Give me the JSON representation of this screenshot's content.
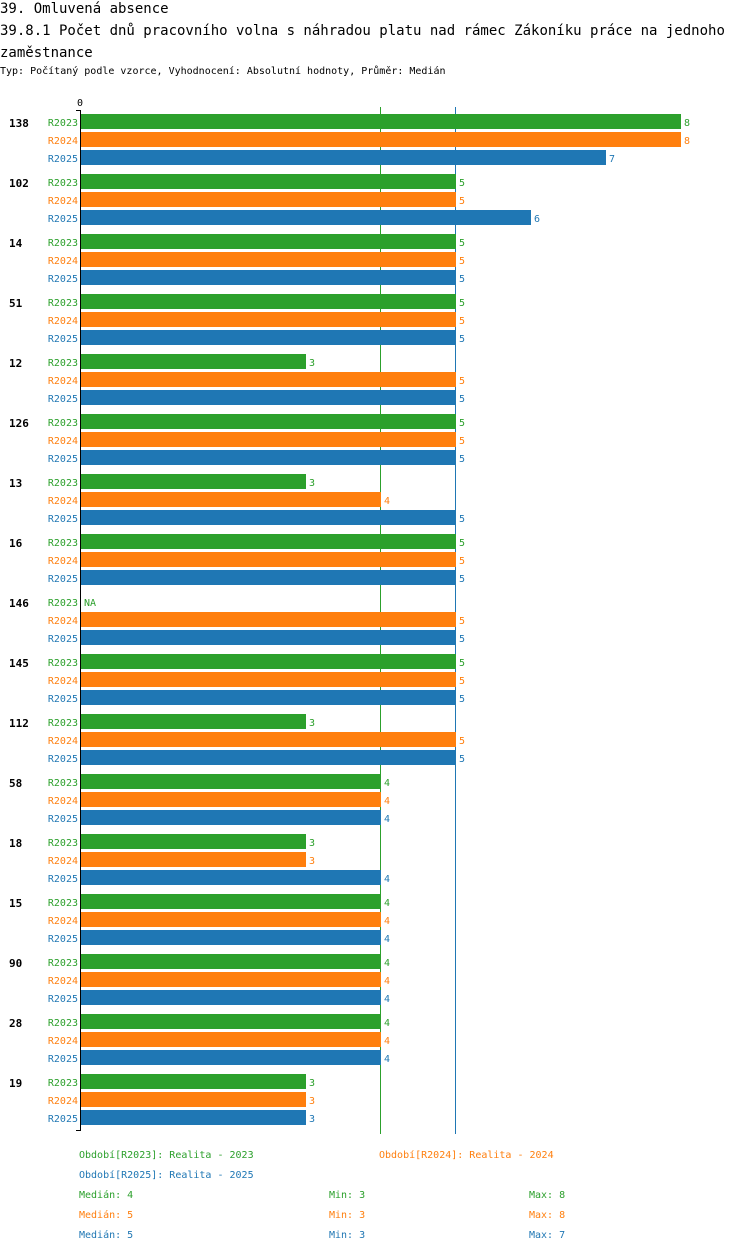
{
  "header": {
    "title": "39. Omluvená absence",
    "subtitle": "39.8.1 Počet dnů pracovního volna s náhradou platu nad rámec Zákoníku práce na jednoho zaměstnance",
    "info": "Typ: Počítaný podle vzorce, Vyhodnocení: Absolutní hodnoty, Průměr: Medián"
  },
  "colors": {
    "R2023": "#2ca02c",
    "R2024": "#ff7f0e",
    "R2025": "#1f77b4"
  },
  "chart_data": {
    "type": "bar",
    "orientation": "horizontal",
    "axis_min": 0,
    "axis_max": 8,
    "zero_label": "0",
    "series_names": [
      "R2023",
      "R2024",
      "R2025"
    ],
    "medians": [
      4,
      5,
      5
    ],
    "categories": [
      "138",
      "102",
      "14",
      "51",
      "12",
      "126",
      "13",
      "16",
      "146",
      "145",
      "112",
      "58",
      "18",
      "15",
      "90",
      "28",
      "19"
    ],
    "series": [
      {
        "name": "R2023",
        "values": [
          8,
          5,
          5,
          5,
          3,
          5,
          3,
          5,
          null,
          5,
          3,
          4,
          3,
          4,
          4,
          4,
          3
        ]
      },
      {
        "name": "R2024",
        "values": [
          8,
          5,
          5,
          5,
          5,
          5,
          4,
          5,
          5,
          5,
          5,
          4,
          3,
          4,
          4,
          4,
          3
        ]
      },
      {
        "name": "R2025",
        "values": [
          7,
          6,
          5,
          5,
          5,
          5,
          5,
          5,
          5,
          5,
          5,
          4,
          4,
          4,
          4,
          4,
          3
        ]
      }
    ],
    "na_label": "NA"
  },
  "legend": {
    "periods": [
      "Období[R2023]: Realita - 2023",
      "Období[R2024]: Realita - 2024",
      "Období[R2025]: Realita - 2025"
    ],
    "stats": [
      {
        "median": "Medián: 4",
        "min": "Min: 3",
        "max": "Max: 8"
      },
      {
        "median": "Medián: 5",
        "min": "Min: 3",
        "max": "Max: 8"
      },
      {
        "median": "Medián: 5",
        "min": "Min: 3",
        "max": "Max: 7"
      }
    ]
  }
}
